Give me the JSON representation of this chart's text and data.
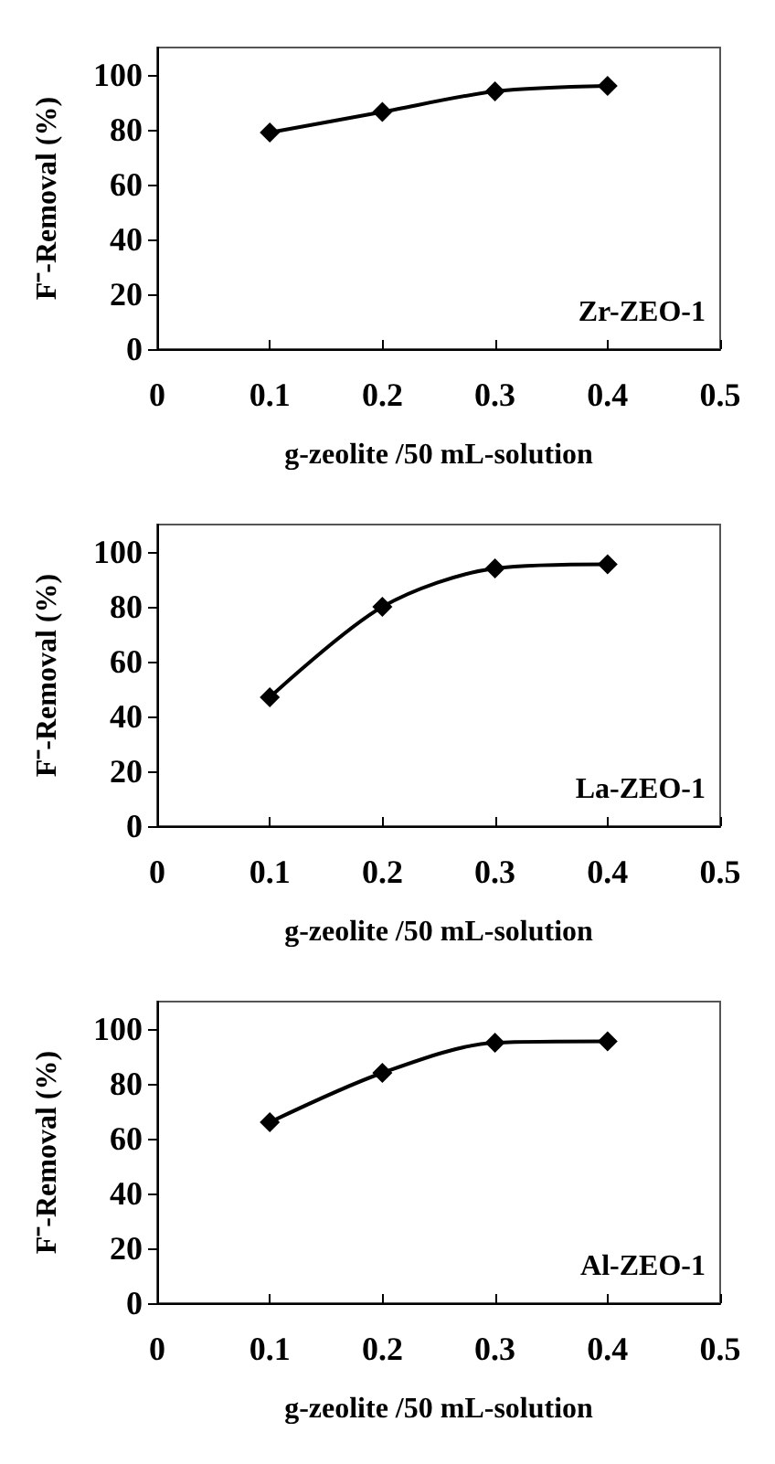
{
  "chart_data": [
    {
      "type": "line",
      "xlabel": "g-zeolite /50 mL-solution",
      "ylabel": "F⁻-Removal (%)",
      "annotations": [
        "Zr-ZEO-1"
      ],
      "x": [
        0.1,
        0.2,
        0.3,
        0.4
      ],
      "series": [
        {
          "color": "#000000",
          "values": [
            79,
            86.5,
            94,
            96
          ]
        }
      ],
      "xlim": [
        0,
        0.5
      ],
      "xticks": [
        0,
        0.1,
        0.2,
        0.3,
        0.4,
        0.5
      ],
      "ylim": [
        0,
        110
      ],
      "yticks": [
        0,
        20,
        40,
        60,
        80,
        100
      ],
      "grid": false,
      "marker": "diamond",
      "line_style": "solid"
    },
    {
      "type": "line",
      "xlabel": "g-zeolite /50 mL-solution",
      "ylabel": "F⁻-Removal (%)",
      "annotations": [
        "La-ZEO-1"
      ],
      "x": [
        0.1,
        0.2,
        0.3,
        0.4
      ],
      "series": [
        {
          "color": "#000000",
          "values": [
            47,
            80,
            94,
            95.5
          ]
        }
      ],
      "xlim": [
        0,
        0.5
      ],
      "xticks": [
        0,
        0.1,
        0.2,
        0.3,
        0.4,
        0.5
      ],
      "ylim": [
        0,
        110
      ],
      "yticks": [
        0,
        20,
        40,
        60,
        80,
        100
      ],
      "grid": false,
      "marker": "diamond",
      "line_style": "solid"
    },
    {
      "type": "line",
      "xlabel": "g-zeolite /50 mL-solution",
      "ylabel": "F⁻-Removal (%)",
      "annotations": [
        "Al-ZEO-1"
      ],
      "x": [
        0.1,
        0.2,
        0.3,
        0.4
      ],
      "series": [
        {
          "color": "#000000",
          "values": [
            66,
            84,
            95,
            95.5
          ]
        }
      ],
      "xlim": [
        0,
        0.5
      ],
      "xticks": [
        0,
        0.1,
        0.2,
        0.3,
        0.4,
        0.5
      ],
      "ylim": [
        0,
        110
      ],
      "yticks": [
        0,
        20,
        40,
        60,
        80,
        100
      ],
      "grid": false,
      "marker": "diamond",
      "line_style": "solid"
    }
  ]
}
